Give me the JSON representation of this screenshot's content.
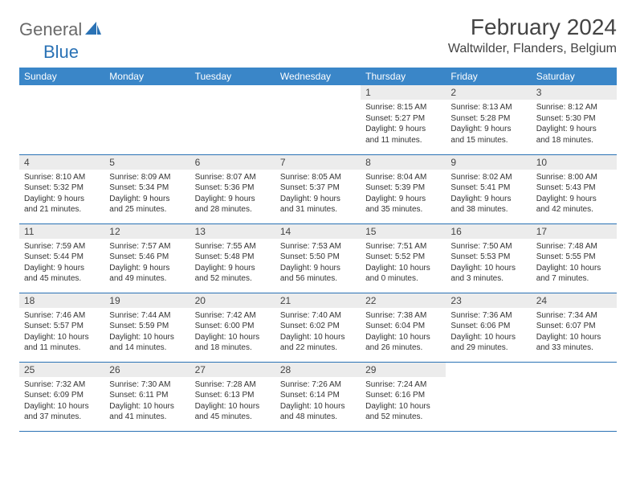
{
  "brand": {
    "part1": "General",
    "part2": "Blue"
  },
  "title": "February 2024",
  "location": "Waltwilder, Flanders, Belgium",
  "colors": {
    "header_bg": "#3a86c8",
    "header_fg": "#ffffff",
    "rule": "#2a72b5",
    "daynum_bg": "#ececec",
    "text": "#333333",
    "brand_gray": "#6a6a6a",
    "brand_blue": "#2a72b5",
    "page_bg": "#ffffff"
  },
  "typography": {
    "title_fontsize": 28,
    "location_fontsize": 16,
    "header_fontsize": 12,
    "daynum_fontsize": 12,
    "body_fontsize": 10
  },
  "weekdays": [
    "Sunday",
    "Monday",
    "Tuesday",
    "Wednesday",
    "Thursday",
    "Friday",
    "Saturday"
  ],
  "grid": [
    [
      {
        "empty": true
      },
      {
        "empty": true
      },
      {
        "empty": true
      },
      {
        "empty": true
      },
      {
        "n": "1",
        "sunrise": "8:15 AM",
        "sunset": "5:27 PM",
        "daylight": "9 hours and 11 minutes."
      },
      {
        "n": "2",
        "sunrise": "8:13 AM",
        "sunset": "5:28 PM",
        "daylight": "9 hours and 15 minutes."
      },
      {
        "n": "3",
        "sunrise": "8:12 AM",
        "sunset": "5:30 PM",
        "daylight": "9 hours and 18 minutes."
      }
    ],
    [
      {
        "n": "4",
        "sunrise": "8:10 AM",
        "sunset": "5:32 PM",
        "daylight": "9 hours and 21 minutes."
      },
      {
        "n": "5",
        "sunrise": "8:09 AM",
        "sunset": "5:34 PM",
        "daylight": "9 hours and 25 minutes."
      },
      {
        "n": "6",
        "sunrise": "8:07 AM",
        "sunset": "5:36 PM",
        "daylight": "9 hours and 28 minutes."
      },
      {
        "n": "7",
        "sunrise": "8:05 AM",
        "sunset": "5:37 PM",
        "daylight": "9 hours and 31 minutes."
      },
      {
        "n": "8",
        "sunrise": "8:04 AM",
        "sunset": "5:39 PM",
        "daylight": "9 hours and 35 minutes."
      },
      {
        "n": "9",
        "sunrise": "8:02 AM",
        "sunset": "5:41 PM",
        "daylight": "9 hours and 38 minutes."
      },
      {
        "n": "10",
        "sunrise": "8:00 AM",
        "sunset": "5:43 PM",
        "daylight": "9 hours and 42 minutes."
      }
    ],
    [
      {
        "n": "11",
        "sunrise": "7:59 AM",
        "sunset": "5:44 PM",
        "daylight": "9 hours and 45 minutes."
      },
      {
        "n": "12",
        "sunrise": "7:57 AM",
        "sunset": "5:46 PM",
        "daylight": "9 hours and 49 minutes."
      },
      {
        "n": "13",
        "sunrise": "7:55 AM",
        "sunset": "5:48 PM",
        "daylight": "9 hours and 52 minutes."
      },
      {
        "n": "14",
        "sunrise": "7:53 AM",
        "sunset": "5:50 PM",
        "daylight": "9 hours and 56 minutes."
      },
      {
        "n": "15",
        "sunrise": "7:51 AM",
        "sunset": "5:52 PM",
        "daylight": "10 hours and 0 minutes."
      },
      {
        "n": "16",
        "sunrise": "7:50 AM",
        "sunset": "5:53 PM",
        "daylight": "10 hours and 3 minutes."
      },
      {
        "n": "17",
        "sunrise": "7:48 AM",
        "sunset": "5:55 PM",
        "daylight": "10 hours and 7 minutes."
      }
    ],
    [
      {
        "n": "18",
        "sunrise": "7:46 AM",
        "sunset": "5:57 PM",
        "daylight": "10 hours and 11 minutes."
      },
      {
        "n": "19",
        "sunrise": "7:44 AM",
        "sunset": "5:59 PM",
        "daylight": "10 hours and 14 minutes."
      },
      {
        "n": "20",
        "sunrise": "7:42 AM",
        "sunset": "6:00 PM",
        "daylight": "10 hours and 18 minutes."
      },
      {
        "n": "21",
        "sunrise": "7:40 AM",
        "sunset": "6:02 PM",
        "daylight": "10 hours and 22 minutes."
      },
      {
        "n": "22",
        "sunrise": "7:38 AM",
        "sunset": "6:04 PM",
        "daylight": "10 hours and 26 minutes."
      },
      {
        "n": "23",
        "sunrise": "7:36 AM",
        "sunset": "6:06 PM",
        "daylight": "10 hours and 29 minutes."
      },
      {
        "n": "24",
        "sunrise": "7:34 AM",
        "sunset": "6:07 PM",
        "daylight": "10 hours and 33 minutes."
      }
    ],
    [
      {
        "n": "25",
        "sunrise": "7:32 AM",
        "sunset": "6:09 PM",
        "daylight": "10 hours and 37 minutes."
      },
      {
        "n": "26",
        "sunrise": "7:30 AM",
        "sunset": "6:11 PM",
        "daylight": "10 hours and 41 minutes."
      },
      {
        "n": "27",
        "sunrise": "7:28 AM",
        "sunset": "6:13 PM",
        "daylight": "10 hours and 45 minutes."
      },
      {
        "n": "28",
        "sunrise": "7:26 AM",
        "sunset": "6:14 PM",
        "daylight": "10 hours and 48 minutes."
      },
      {
        "n": "29",
        "sunrise": "7:24 AM",
        "sunset": "6:16 PM",
        "daylight": "10 hours and 52 minutes."
      },
      {
        "empty": true
      },
      {
        "empty": true
      }
    ]
  ],
  "labels": {
    "sunrise": "Sunrise:",
    "sunset": "Sunset:",
    "daylight": "Daylight:"
  }
}
